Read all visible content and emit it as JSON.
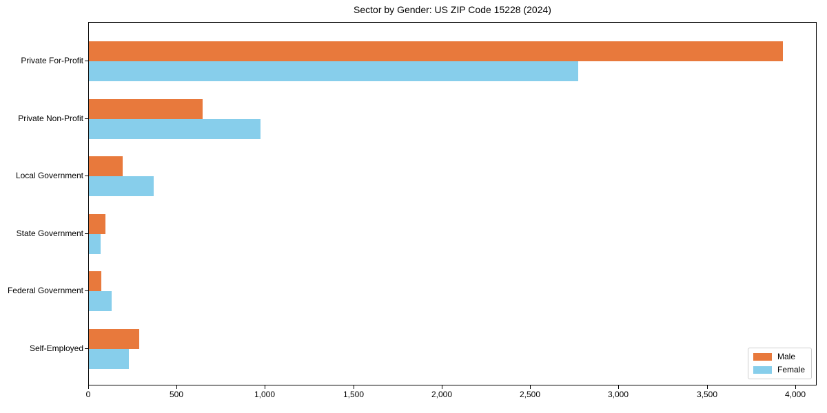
{
  "chart_data": {
    "type": "bar",
    "orientation": "horizontal",
    "title": "Sector by Gender: US ZIP Code 15228 (2024)",
    "categories": [
      "Private For-Profit",
      "Private Non-Profit",
      "Local Government",
      "State Government",
      "Federal Government",
      "Self-Employed"
    ],
    "series": [
      {
        "name": "Male",
        "color": "#e8793c",
        "values": [
          3925,
          645,
          190,
          93,
          70,
          285
        ]
      },
      {
        "name": "Female",
        "color": "#87ceeb",
        "values": [
          2770,
          970,
          365,
          65,
          128,
          225
        ]
      }
    ],
    "xlabel": "",
    "ylabel": "",
    "xlim": [
      0,
      4121
    ],
    "x_ticks": [
      0,
      500,
      1000,
      1500,
      2000,
      2500,
      3000,
      3500,
      4000
    ],
    "x_tick_labels": [
      "0",
      "500",
      "1,000",
      "1,500",
      "2,000",
      "2,500",
      "3,000",
      "3,500",
      "4,000"
    ],
    "grid": false,
    "legend": {
      "position": "lower right",
      "items": [
        "Male",
        "Female"
      ]
    }
  },
  "colors": {
    "background": "#ffffff",
    "axis": "#000000",
    "text": "#000000",
    "legend_border": "#cccccc",
    "male": "#e8793c",
    "female": "#87ceeb"
  }
}
